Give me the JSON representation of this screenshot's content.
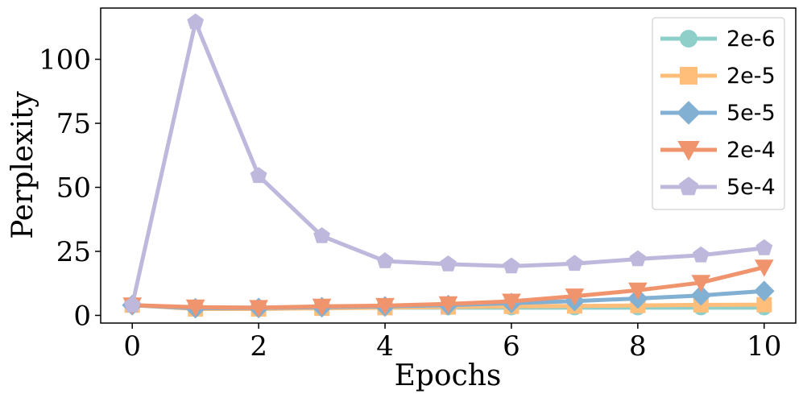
{
  "chart_data": {
    "type": "line",
    "xlabel": "Epochs",
    "ylabel": "Perplexity",
    "xlim": [
      -0.5,
      10.5
    ],
    "ylim": [
      -3,
      120
    ],
    "xticks": [
      0,
      2,
      4,
      6,
      8,
      10
    ],
    "yticks": [
      0,
      25,
      50,
      75,
      100
    ],
    "grid": false,
    "legend_position": "top-right",
    "x": [
      0,
      1,
      2,
      3,
      4,
      5,
      6,
      7,
      8,
      9,
      10
    ],
    "series": [
      {
        "name": "2e-6",
        "color": "#8ecfc9",
        "marker": "circle",
        "values": [
          4.0,
          3.0,
          3.0,
          3.0,
          3.0,
          3.0,
          3.0,
          3.0,
          3.0,
          3.0,
          3.0
        ]
      },
      {
        "name": "2e-5",
        "color": "#ffbe7a",
        "marker": "square",
        "values": [
          4.0,
          2.5,
          2.5,
          2.8,
          3.0,
          3.3,
          3.5,
          3.7,
          3.9,
          4.1,
          4.2
        ]
      },
      {
        "name": "5e-5",
        "color": "#82b0d2",
        "marker": "diamond",
        "values": [
          4.0,
          2.8,
          2.9,
          3.2,
          3.5,
          4.0,
          4.8,
          5.6,
          6.6,
          7.8,
          9.5
        ]
      },
      {
        "name": "2e-4",
        "color": "#f0946e",
        "marker": "triangle-down",
        "values": [
          4.0,
          3.2,
          3.0,
          3.5,
          3.8,
          4.5,
          5.5,
          7.5,
          9.8,
          12.8,
          18.8
        ]
      },
      {
        "name": "5e-4",
        "color": "#beb8dc",
        "marker": "pentagon",
        "values": [
          4.0,
          114.5,
          54.5,
          31.0,
          21.2,
          20.0,
          19.2,
          20.2,
          22.0,
          23.5,
          26.3
        ]
      }
    ]
  }
}
